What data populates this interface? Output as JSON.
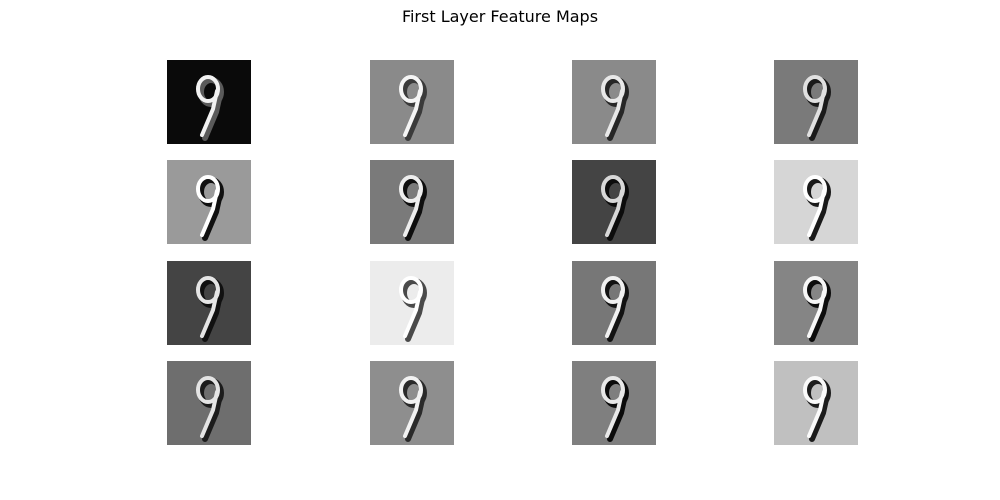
{
  "figure": {
    "title": "First Layer Feature Maps"
  },
  "feature_maps": [
    {
      "background": "#0a0a0a",
      "stroke_light": "#f2f2f2",
      "stroke_dark": "#5a5a5a"
    },
    {
      "background": "#8a8a8a",
      "stroke_light": "#f5f5f5",
      "stroke_dark": "#3a3a3a"
    },
    {
      "background": "#8a8a8a",
      "stroke_light": "#e8e8e8",
      "stroke_dark": "#262626"
    },
    {
      "background": "#7a7a7a",
      "stroke_light": "#e0e0e0",
      "stroke_dark": "#1a1a1a"
    },
    {
      "background": "#9a9a9a",
      "stroke_light": "#ffffff",
      "stroke_dark": "#101010"
    },
    {
      "background": "#7a7a7a",
      "stroke_light": "#eeeeee",
      "stroke_dark": "#0e0e0e"
    },
    {
      "background": "#444444",
      "stroke_light": "#d8d8d8",
      "stroke_dark": "#0c0c0c"
    },
    {
      "background": "#d6d6d6",
      "stroke_light": "#ffffff",
      "stroke_dark": "#1a1a1a"
    },
    {
      "background": "#444444",
      "stroke_light": "#e6e6e6",
      "stroke_dark": "#111111"
    },
    {
      "background": "#ececec",
      "stroke_light": "#ffffff",
      "stroke_dark": "#4a4a4a"
    },
    {
      "background": "#777777",
      "stroke_light": "#f0f0f0",
      "stroke_dark": "#121212"
    },
    {
      "background": "#858585",
      "stroke_light": "#f7f7f7",
      "stroke_dark": "#0c0c0c"
    },
    {
      "background": "#6e6e6e",
      "stroke_light": "#e4e4e4",
      "stroke_dark": "#1c1c1c"
    },
    {
      "background": "#8e8e8e",
      "stroke_light": "#f2f2f2",
      "stroke_dark": "#2a2a2a"
    },
    {
      "background": "#7f7f7f",
      "stroke_light": "#e8e8e8",
      "stroke_dark": "#0a0a0a"
    },
    {
      "background": "#c0c0c0",
      "stroke_light": "#fafafa",
      "stroke_dark": "#1c1c1c"
    }
  ]
}
